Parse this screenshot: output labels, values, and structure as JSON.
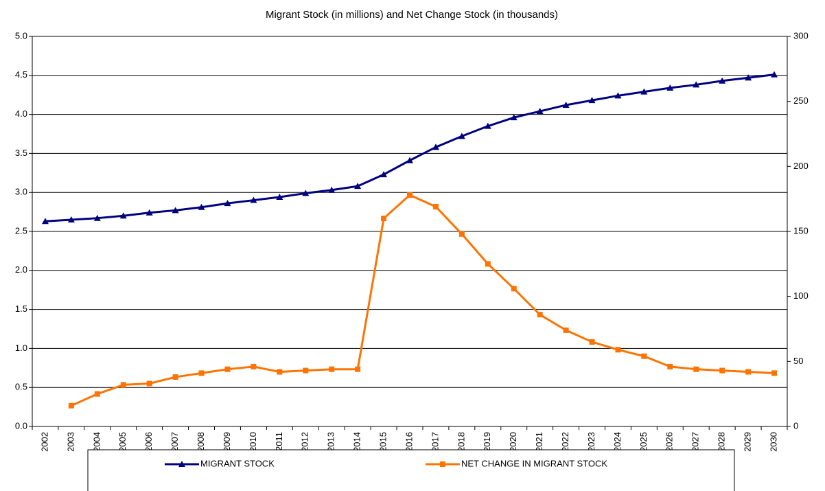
{
  "chart_data": {
    "type": "line",
    "title": "Migrant Stock (in millions) and Net Change Stock (in thousands)",
    "categories": [
      "2002",
      "2003",
      "2004",
      "2005",
      "2006",
      "2007",
      "2008",
      "2009",
      "2010",
      "2011",
      "2012",
      "2013",
      "2014",
      "2015",
      "2016",
      "2017",
      "2018",
      "2019",
      "2020",
      "2021",
      "2022",
      "2023",
      "2024",
      "2025",
      "2026",
      "2027",
      "2028",
      "2029",
      "2030"
    ],
    "series": [
      {
        "name": "MIGRANT STOCK",
        "color": "#000080",
        "marker": "triangle",
        "axis": "y",
        "values": [
          2.63,
          2.65,
          2.67,
          2.7,
          2.74,
          2.77,
          2.81,
          2.86,
          2.9,
          2.94,
          2.99,
          3.03,
          3.08,
          3.23,
          3.41,
          3.58,
          3.72,
          3.85,
          3.96,
          4.04,
          4.12,
          4.18,
          4.24,
          4.29,
          4.34,
          4.38,
          4.43,
          4.47,
          4.51
        ]
      },
      {
        "name": "NET CHANGE IN MIGRANT STOCK",
        "color": "#ff7300",
        "marker": "square",
        "axis": "y2",
        "values": [
          null,
          16,
          25,
          32,
          33,
          38,
          41,
          44,
          46,
          42,
          43,
          44,
          44,
          160,
          178,
          169,
          148,
          125,
          106,
          86,
          74,
          65,
          59,
          54,
          46,
          44,
          43,
          42,
          41
        ]
      }
    ],
    "ylim": [
      0,
      5
    ],
    "yticks": [
      {
        "value": 0,
        "label": "0.0"
      },
      0.5,
      {
        "value": 1,
        "label": "1.0"
      },
      1.5,
      {
        "value": 2,
        "label": "2.0"
      },
      2.5,
      {
        "value": 3,
        "label": "3.0"
      },
      3.5,
      {
        "value": 4,
        "label": "4.0"
      },
      4.5,
      {
        "value": 5,
        "label": "5.0"
      }
    ],
    "y2lim": [
      0,
      300
    ],
    "y2ticks": [
      0,
      50,
      100,
      150,
      200,
      250,
      300
    ],
    "grid": true,
    "legend": "bottom"
  }
}
